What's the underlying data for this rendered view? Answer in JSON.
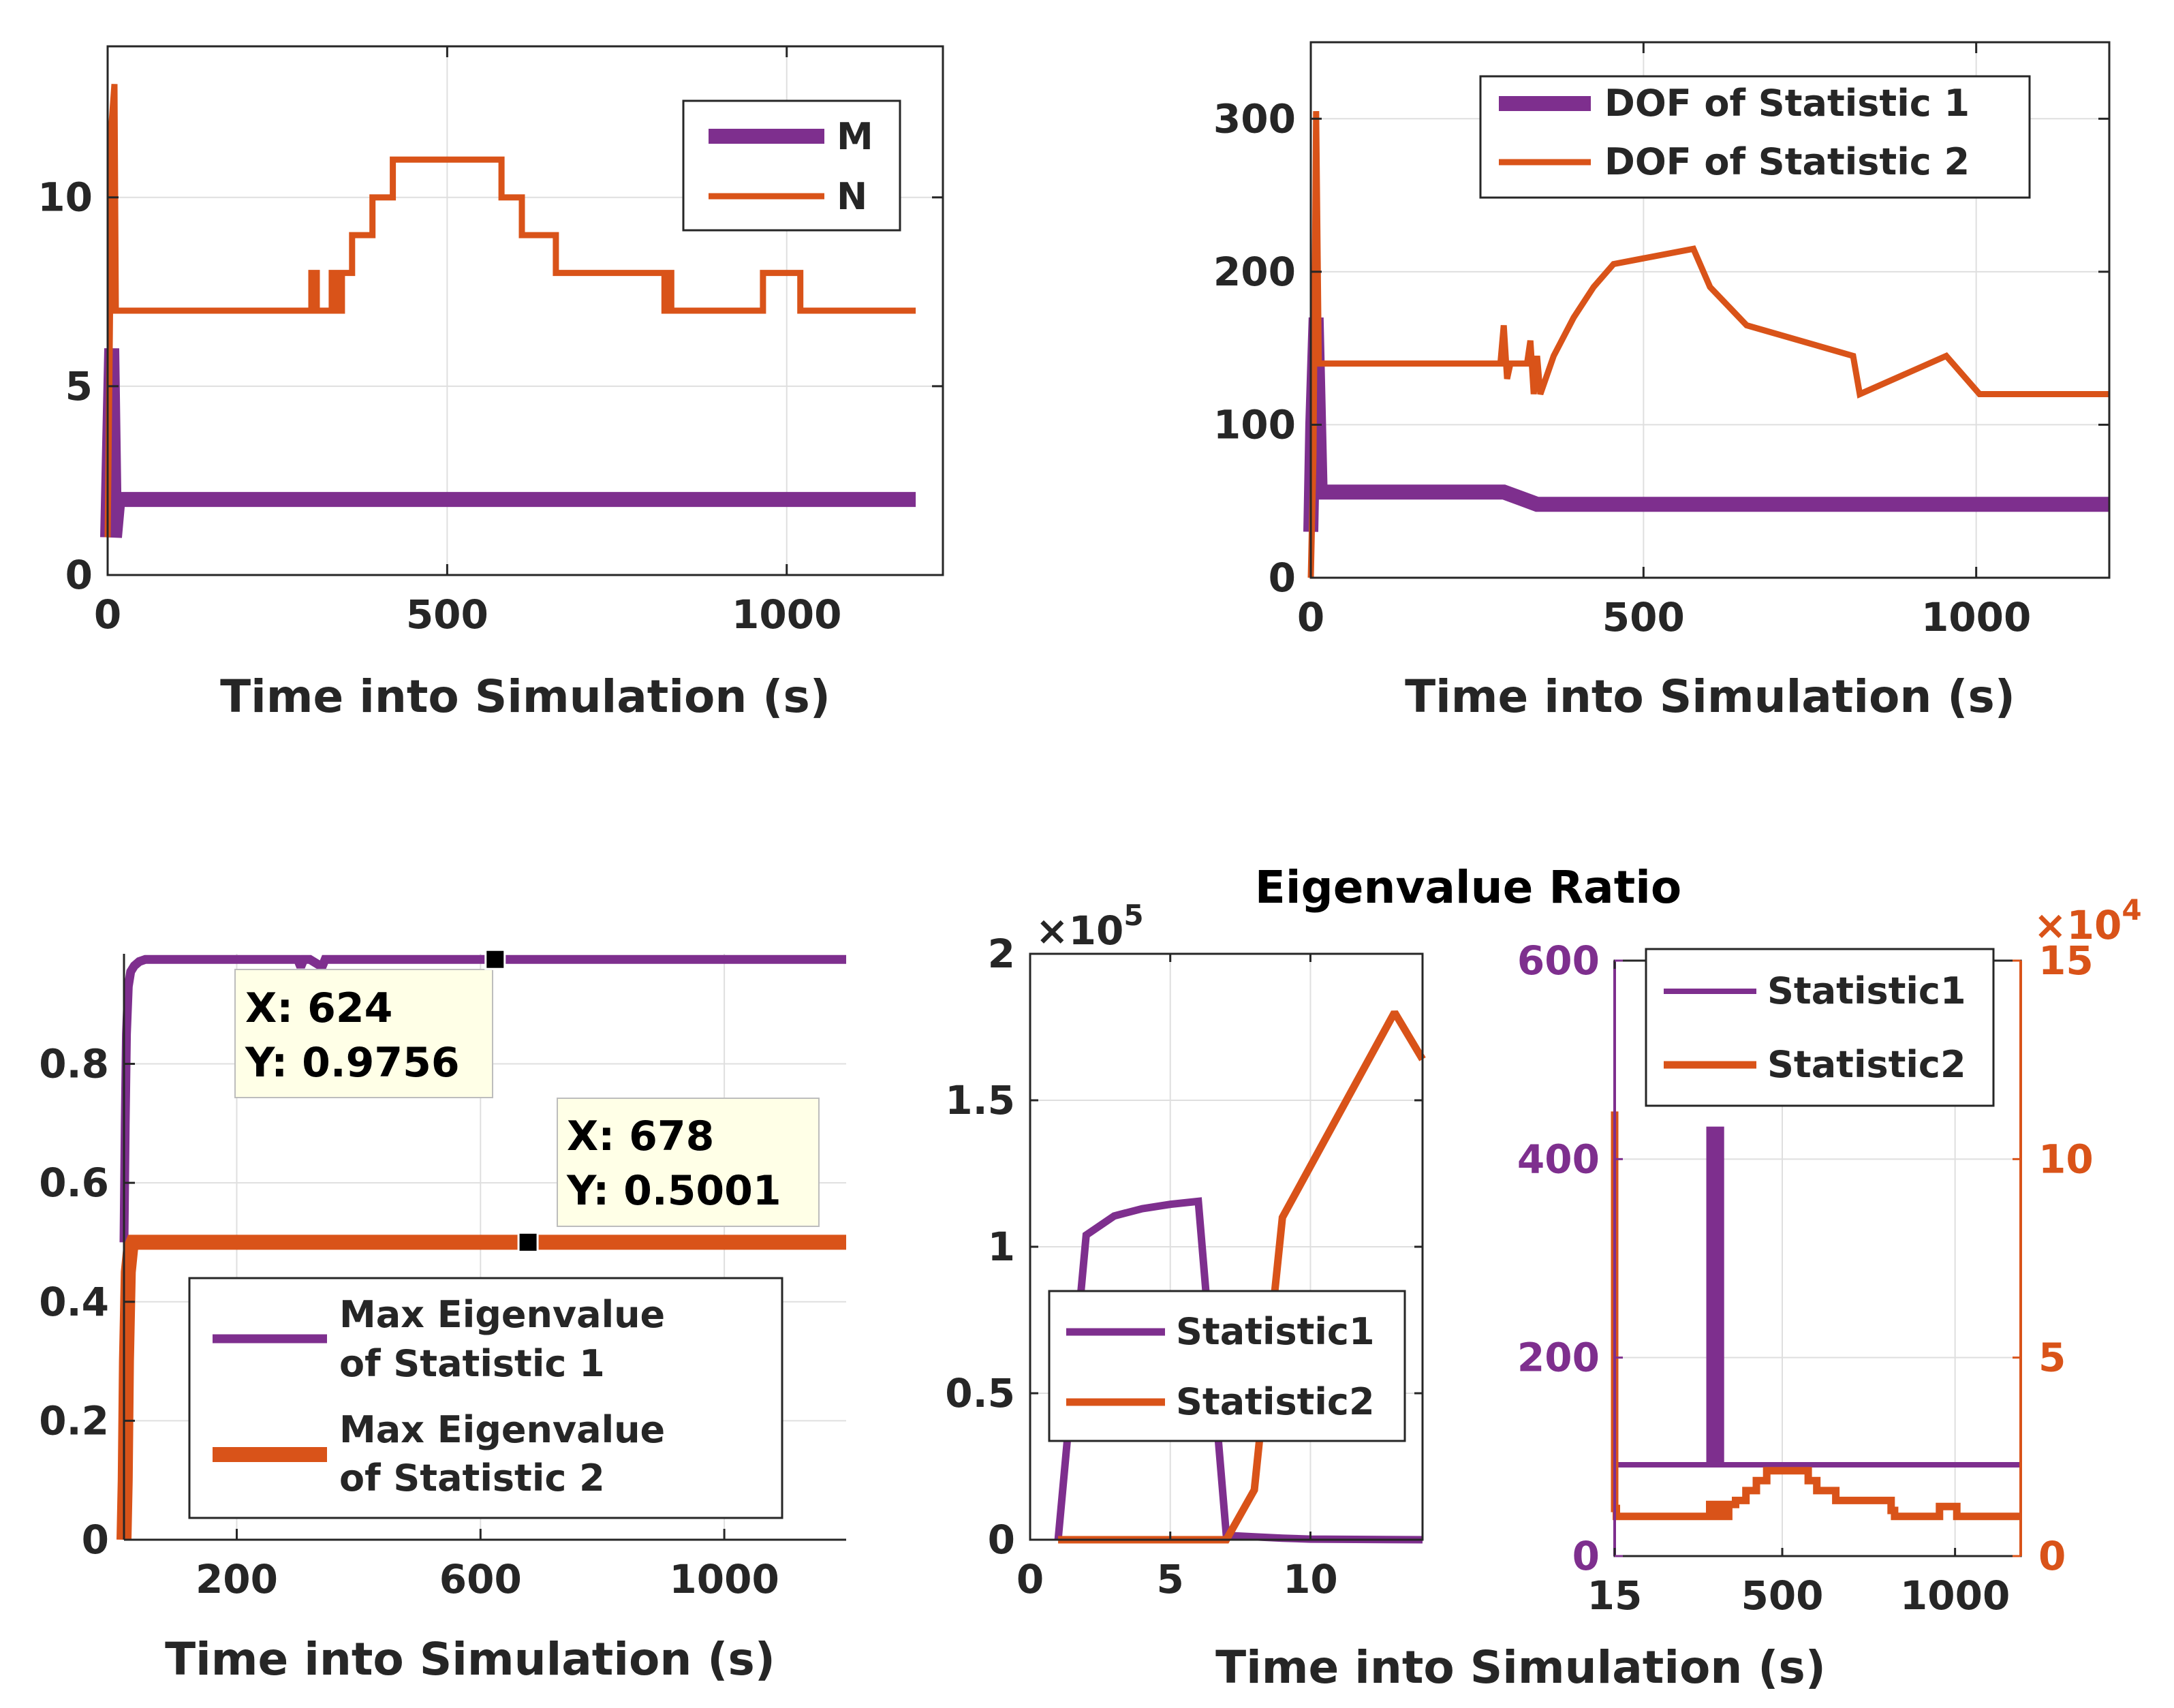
{
  "colors": {
    "purple": "#7E2F8E",
    "orange": "#D95319",
    "axis": "#262626",
    "grid": "#DFDFDF",
    "tip_bg": "#FFFFE7"
  },
  "chart_data": [
    {
      "id": "tl",
      "type": "line",
      "xlabel": "Time into Simulation (s)",
      "ylabel": "",
      "xlim": [
        0,
        1230
      ],
      "ylim": [
        0,
        14
      ],
      "xticks": [
        0,
        500,
        1000
      ],
      "yticks": [
        0,
        5,
        10
      ],
      "xticklabels": [
        "0",
        "500",
        "1000"
      ],
      "yticklabels": [
        "0",
        "5",
        "10"
      ],
      "legend": [
        "M",
        "N"
      ],
      "legend_position": "top-right",
      "series": [
        {
          "name": "M",
          "color": "purple",
          "width": 22,
          "x": [
            0,
            6,
            10,
            15,
            1190
          ],
          "y": [
            1,
            6,
            1,
            2,
            2
          ]
        },
        {
          "name": "N",
          "color": "orange",
          "width": 9,
          "x": [
            0,
            3,
            6,
            10,
            12,
            15,
            18,
            300,
            300,
            308,
            308,
            315,
            315,
            330,
            330,
            338,
            338,
            345,
            345,
            360,
            360,
            390,
            390,
            420,
            420,
            450,
            450,
            580,
            580,
            610,
            610,
            660,
            660,
            820,
            820,
            826,
            826,
            830,
            830,
            965,
            965,
            1020,
            1020,
            1190
          ],
          "y": [
            1,
            6,
            12,
            13,
            7,
            7,
            7,
            7,
            8,
            8,
            7,
            7,
            7,
            7,
            8,
            8,
            7,
            7,
            8,
            8,
            9,
            9,
            10,
            10,
            11,
            11,
            11,
            11,
            10,
            10,
            9,
            9,
            8,
            8,
            7,
            7,
            8,
            8,
            7,
            7,
            8,
            8,
            7,
            7
          ]
        }
      ]
    },
    {
      "id": "tr",
      "type": "line",
      "xlabel": "Time into Simulation (s)",
      "ylabel": "",
      "xlim": [
        0,
        1200
      ],
      "ylim": [
        0,
        350
      ],
      "xticks": [
        0,
        500,
        1000
      ],
      "yticks": [
        0,
        100,
        200,
        300
      ],
      "xticklabels": [
        "0",
        "500",
        "1000"
      ],
      "yticklabels": [
        "0",
        "100",
        "200",
        "300"
      ],
      "legend": [
        "DOF of Statistic 1",
        "DOF of Statistic 2"
      ],
      "legend_position": "top-right",
      "series": [
        {
          "name": "DOF of Statistic 1",
          "color": "purple",
          "width": 22,
          "x": [
            0,
            3,
            8,
            14,
            290,
            315,
            340,
            1200
          ],
          "y": [
            30,
            100,
            170,
            56,
            56,
            52,
            48,
            48
          ]
        },
        {
          "name": "DOF of Statistic 2",
          "color": "orange",
          "width": 9,
          "x": [
            0,
            4,
            8,
            12,
            15,
            285,
            290,
            295,
            300,
            325,
            330,
            335,
            340,
            345,
            365,
            365,
            395,
            395,
            425,
            425,
            455,
            455,
            575,
            575,
            600,
            600,
            655,
            655,
            815,
            815,
            825,
            825,
            955,
            955,
            1005,
            1005,
            1200
          ],
          "y": [
            0,
            80,
            305,
            140,
            140,
            140,
            165,
            130,
            140,
            140,
            155,
            120,
            145,
            120,
            145,
            145,
            170,
            170,
            190,
            190,
            205,
            205,
            215,
            215,
            190,
            190,
            165,
            165,
            145,
            145,
            120,
            120,
            145,
            145,
            120,
            120,
            120
          ]
        }
      ]
    },
    {
      "id": "bl",
      "type": "line",
      "xlabel": "Time into Simulation (s)",
      "ylabel": "",
      "xlim": [
        15,
        1200
      ],
      "ylim": [
        0,
        0.985
      ],
      "xticks": [
        200,
        600,
        1000
      ],
      "yticks": [
        0,
        0.2,
        0.4,
        0.6,
        0.8
      ],
      "xticklabels": [
        "200",
        "600",
        "1000"
      ],
      "yticklabels": [
        "0",
        "0.2",
        "0.4",
        "0.6",
        "0.8"
      ],
      "legend": [
        "Max Eigenvalue of Statistic 1",
        "Max Eigenvalue of Statistic 2"
      ],
      "legend_position": "bottom-center",
      "legend_lines": [
        [
          "Max Eigenvalue",
          "of Statistic 1"
        ],
        [
          "Max Eigenvalue",
          "of Statistic 2"
        ]
      ],
      "series": [
        {
          "name": "Max Eigenvalue of Statistic 1",
          "color": "purple",
          "width": 13,
          "x": [
            15,
            17,
            19,
            22,
            26,
            32,
            40,
            50,
            300,
            305,
            310,
            320,
            340,
            345,
            350,
            1200
          ],
          "y": [
            0.5,
            0.7,
            0.85,
            0.93,
            0.955,
            0.965,
            0.972,
            0.9756,
            0.9756,
            0.963,
            0.9756,
            0.9756,
            0.963,
            0.9756,
            0.9756,
            0.9756
          ]
        },
        {
          "name": "Max Eigenvalue of Statistic 2",
          "color": "orange",
          "width": 22,
          "x": [
            15,
            17,
            19,
            22,
            26,
            30,
            40,
            1200
          ],
          "y": [
            0,
            0.1,
            0.3,
            0.45,
            0.49,
            0.5001,
            0.5001,
            0.5001
          ]
        }
      ],
      "datatips": [
        {
          "x": 624,
          "y": 0.9756,
          "label_x": "X: 624",
          "label_y": "Y: 0.9756"
        },
        {
          "x": 678,
          "y": 0.5001,
          "label_x": "X: 678",
          "label_y": "Y: 0.5001"
        }
      ]
    },
    {
      "id": "bm",
      "type": "line",
      "title": "Eigenvalue Ratio",
      "xlabel": "Time into Simulation (s)",
      "ylabel": "",
      "xlim": [
        0,
        14
      ],
      "ylim": [
        0,
        200000
      ],
      "xticks": [
        0,
        5,
        10
      ],
      "yticks": [
        0,
        50000,
        100000,
        150000,
        200000
      ],
      "xticklabels": [
        "0",
        "5",
        "10"
      ],
      "yticklabels": [
        "0",
        "0.5",
        "1",
        "1.5",
        "2"
      ],
      "y_multiplier": "×10",
      "y_multiplier_exp": "5",
      "legend": [
        "Statistic1",
        "Statistic2"
      ],
      "legend_position": "bottom-right",
      "series": [
        {
          "name": "Statistic1",
          "color": "purple",
          "width": 11,
          "x": [
            1,
            2,
            3,
            4,
            5,
            6,
            7,
            8,
            9,
            10,
            14
          ],
          "y": [
            0,
            104000,
            110500,
            113000,
            114500,
            115500,
            1500,
            1000,
            500,
            200,
            0
          ]
        },
        {
          "name": "Statistic2",
          "color": "orange",
          "width": 11,
          "x": [
            1,
            2,
            3,
            4,
            5,
            6,
            7,
            8,
            9,
            13,
            14
          ],
          "y": [
            0,
            0,
            0,
            0,
            0,
            0,
            0,
            17000,
            110000,
            180000,
            164000
          ]
        }
      ]
    },
    {
      "id": "br",
      "type": "line",
      "xlabel": "",
      "ylabel": "",
      "xlim": [
        15,
        1190
      ],
      "ylim": [
        0,
        600
      ],
      "ylim_right": [
        0,
        150000
      ],
      "xticks": [
        15,
        500,
        1000
      ],
      "yticks": [
        0,
        200,
        400,
        600
      ],
      "yticks_right": [
        0,
        50000,
        100000,
        150000
      ],
      "xticklabels": [
        "15",
        "500",
        "1000"
      ],
      "yticklabels": [
        "0",
        "200",
        "400",
        "600"
      ],
      "yticklabels_right": [
        "0",
        "5",
        "10",
        "15"
      ],
      "y_right_multiplier": "×10",
      "y_right_multiplier_exp": "4",
      "legend": [
        "Statistic1",
        "Statistic2"
      ],
      "legend_position": "top-right",
      "series": [
        {
          "name": "Statistic1",
          "color": "purple",
          "width": 8,
          "axis": "left",
          "x": [
            15,
            288,
            288,
            300,
            300,
            312,
            312,
            324,
            324,
            1190
          ],
          "y": [
            92,
            92,
            430,
            430,
            92,
            92,
            430,
            430,
            92,
            92
          ]
        },
        {
          "name": "Statistic2",
          "color": "orange",
          "width": 11,
          "axis": "right",
          "x": [
            15,
            15,
            20,
            20,
            290,
            290,
            300,
            300,
            315,
            315,
            330,
            330,
            345,
            345,
            365,
            365,
            395,
            395,
            425,
            425,
            455,
            455,
            575,
            575,
            600,
            600,
            655,
            655,
            815,
            815,
            825,
            825,
            955,
            955,
            1005,
            1005,
            1190
          ],
          "y": [
            112000,
            12000,
            12000,
            10000,
            10000,
            13000,
            13000,
            10000,
            10000,
            13000,
            13000,
            10000,
            10000,
            13000,
            13000,
            14000,
            14000,
            16500,
            16500,
            19000,
            19000,
            21500,
            21500,
            19000,
            19000,
            16500,
            16500,
            14000,
            14000,
            11500,
            11500,
            10000,
            10000,
            12500,
            12500,
            10000,
            10000
          ]
        }
      ]
    }
  ]
}
